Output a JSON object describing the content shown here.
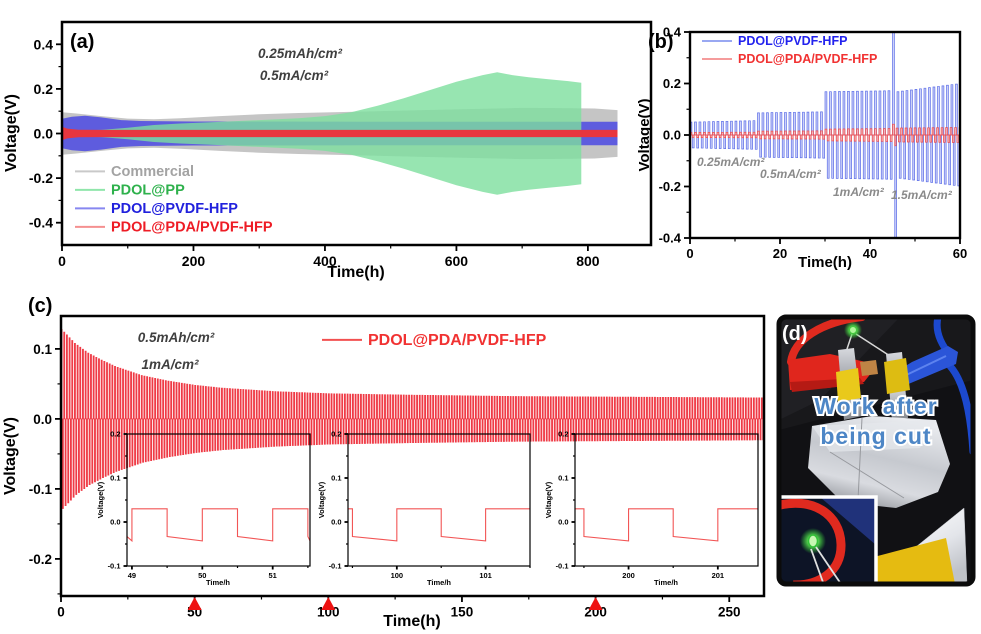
{
  "figure": {
    "type": "battery-cycling-scientific-figure",
    "background": "#ffffff",
    "panel_labels": [
      "(a)",
      "(b)",
      "(c)",
      "(d)"
    ]
  },
  "photo_panel": {
    "label": "(d)",
    "overlay_text": "Work after being cut",
    "overlay_lines": [
      "Work after",
      "being cut"
    ]
  },
  "colors": {
    "commercial_gray": "#c2c2c2",
    "pdol_pp_green": "#7ddf9e",
    "pdol_pvdf_blue": "#5552e0",
    "pdol_pda_red": "#e8363f",
    "annotation_dark": "#3f3f3f",
    "annotation_gray": "#8a8a8a",
    "marker_red": "#ee1111",
    "overlay_blue": "#4d86c6"
  },
  "chart_data": [
    {
      "id": "a",
      "type": "area",
      "panel_label": "(a)",
      "xlabel": "Time(h)",
      "ylabel": "Voltage(V)",
      "xlim": [
        0,
        896
      ],
      "ylim": [
        -0.5,
        0.5
      ],
      "xticks": {
        "values": [
          0,
          200,
          400,
          600,
          800
        ],
        "labels": [
          "0",
          "200",
          "400",
          "600",
          "800"
        ],
        "minor": [
          100,
          300,
          500,
          700
        ]
      },
      "yticks": {
        "values": [
          0.4,
          0.2,
          0,
          -0.2,
          -0.4
        ],
        "labels": [
          "0.4",
          "0.2",
          "0.0",
          "-0.2",
          "-0.4"
        ],
        "minor": [
          0.3,
          0.1,
          -0.1,
          -0.3
        ]
      },
      "annotations": [
        {
          "text": "0.25mAh/cm²"
        },
        {
          "text": "0.5mA/cm²"
        }
      ],
      "legend": [
        {
          "label": "Commercial",
          "text_color": "#a3a3a3",
          "line_color": "#c9c9c9"
        },
        {
          "label": "PDOL@PP",
          "text_color": "#2eb14c",
          "line_color": "#90e6ab"
        },
        {
          "label": "PDOL@PVDF-HFP",
          "text_color": "#2121dd",
          "line_color": "#8787f0"
        },
        {
          "label": "PDOL@PDA/PVDF-HFP",
          "text_color": "#ee1c25",
          "line_color": "#f59090"
        }
      ],
      "series": [
        {
          "name": "Commercial",
          "kind": "envelope",
          "color": "#c2c2c2",
          "opacity": 0.95,
          "points": [
            [
              0,
              0.095
            ],
            [
              20,
              0.09
            ],
            [
              60,
              0.078
            ],
            [
              100,
              0.067
            ],
            [
              140,
              0.064
            ],
            [
              180,
              0.068
            ],
            [
              240,
              0.078
            ],
            [
              300,
              0.086
            ],
            [
              360,
              0.092
            ],
            [
              420,
              0.096
            ],
            [
              480,
              0.1
            ],
            [
              540,
              0.104
            ],
            [
              600,
              0.108
            ],
            [
              660,
              0.112
            ],
            [
              700,
              0.115
            ],
            [
              760,
              0.114
            ],
            [
              810,
              0.112
            ],
            [
              845,
              0.105
            ]
          ]
        },
        {
          "name": "PDOL@PVDF-HFP",
          "kind": "envelope",
          "color": "#5552e0",
          "opacity": 0.92,
          "points": [
            [
              0,
              0.066
            ],
            [
              15,
              0.075
            ],
            [
              35,
              0.08
            ],
            [
              60,
              0.072
            ],
            [
              90,
              0.06
            ],
            [
              120,
              0.056
            ],
            [
              200,
              0.054
            ],
            [
              500,
              0.053
            ],
            [
              845,
              0.053
            ]
          ]
        },
        {
          "name": "PDOL@PP",
          "kind": "envelope",
          "color": "#7ddf9e",
          "opacity": 0.8,
          "points": [
            [
              0,
              0.012
            ],
            [
              60,
              0.016
            ],
            [
              100,
              0.026
            ],
            [
              140,
              0.038
            ],
            [
              180,
              0.045
            ],
            [
              240,
              0.052
            ],
            [
              300,
              0.06
            ],
            [
              360,
              0.068
            ],
            [
              400,
              0.078
            ],
            [
              440,
              0.095
            ],
            [
              480,
              0.124
            ],
            [
              520,
              0.158
            ],
            [
              560,
              0.195
            ],
            [
              600,
              0.232
            ],
            [
              640,
              0.262
            ],
            [
              662,
              0.275
            ],
            [
              685,
              0.262
            ],
            [
              710,
              0.252
            ],
            [
              740,
              0.243
            ],
            [
              770,
              0.235
            ],
            [
              790,
              0.228
            ]
          ]
        },
        {
          "name": "PDOL@PDA/PVDF-HFP",
          "kind": "envelope",
          "color": "#e8363f",
          "opacity": 1,
          "points": [
            [
              0,
              0.03
            ],
            [
              8,
              0.022
            ],
            [
              25,
              0.017
            ],
            [
              60,
              0.016
            ],
            [
              845,
              0.016
            ]
          ]
        }
      ]
    },
    {
      "id": "b",
      "type": "line",
      "panel_label": "(b)",
      "xlabel": "Time(h)",
      "ylabel": "Voltage(V)",
      "xlim": [
        0,
        60
      ],
      "ylim": [
        -0.4,
        0.4
      ],
      "xticks": {
        "values": [
          0,
          20,
          40,
          60
        ],
        "labels": [
          "0",
          "20",
          "40",
          "60"
        ],
        "minor": [
          10,
          30,
          50
        ]
      },
      "yticks": {
        "values": [
          0.4,
          0.2,
          0,
          -0.2,
          -0.4
        ],
        "labels": [
          "0.4",
          "0.2",
          "0.0",
          "-0.2",
          "-0.4"
        ],
        "minor": [
          0.3,
          0.1,
          -0.1,
          -0.3
        ]
      },
      "annotations": [
        {
          "text": "0.25mA/cm²"
        },
        {
          "text": "0.5mA/cm²"
        },
        {
          "text": "1mA/cm²"
        },
        {
          "text": "1.5mA/cm²"
        }
      ],
      "legend": [
        {
          "label": "PDOL@PVDF-HFP",
          "text_color": "#2222ee",
          "line_color": "#99a8f2"
        },
        {
          "label": "PDOL@PDA/PVDF-HFP",
          "text_color": "#f13232",
          "line_color": "#f59c9c"
        }
      ],
      "series": [
        {
          "name": "PDOL@PVDF-HFP",
          "kind": "pulsebars",
          "stroke": "#5e6fe8",
          "fill": "#b9c2f7",
          "fill_opacity": 0.75,
          "period": 1,
          "segments": [
            [
              0,
              15,
              0.05,
              0.056
            ],
            [
              15,
              30,
              0.086,
              0.09
            ],
            [
              30,
              45,
              0.168,
              0.172
            ],
            [
              45,
              46,
              0.42,
              0.42
            ],
            [
              46,
              60,
              0.168,
              0.2
            ]
          ]
        },
        {
          "name": "PDOL@PDA/PVDF-HFP",
          "kind": "pulsebars",
          "stroke": "#f04848",
          "fill": "#f8b0b0",
          "fill_opacity": 0.85,
          "period": 1,
          "segments": [
            [
              0,
              15,
              0.01,
              0.011
            ],
            [
              15,
              30,
              0.015,
              0.016
            ],
            [
              30,
              45,
              0.023,
              0.025
            ],
            [
              45,
              45.8,
              0.042,
              0.042
            ],
            [
              45.8,
              60,
              0.027,
              0.029
            ]
          ]
        }
      ]
    },
    {
      "id": "c",
      "type": "line",
      "panel_label": "(c)",
      "xlabel": "Time(h)",
      "ylabel": "Voltage(V)",
      "xlim": [
        0,
        263
      ],
      "ylim": [
        -0.253,
        0.147
      ],
      "xticks": {
        "values": [
          0,
          50,
          100,
          150,
          200,
          250
        ],
        "labels": [
          "0",
          "50",
          "100",
          "150",
          "200",
          "250"
        ],
        "minor": [
          25,
          75,
          125,
          175,
          225
        ]
      },
      "yticks": {
        "values": [
          0.1,
          0,
          -0.1,
          -0.2
        ],
        "labels": [
          "0.1",
          "0.0",
          "-0.1",
          "-0.2"
        ],
        "minor": [
          0.05,
          -0.05,
          -0.15,
          -0.25
        ]
      },
      "annotations": [
        {
          "text": "0.5mAh/cm²"
        },
        {
          "text": "1mA/cm²"
        }
      ],
      "legend": [
        {
          "label": "PDOL@PDA/PVDF-HFP",
          "text_color": "#f13232",
          "line_color": "#f25050"
        }
      ],
      "markers": {
        "shape": "triangle-up",
        "color": "#ee1111",
        "x": [
          50,
          100,
          200
        ]
      },
      "series": [
        {
          "name": "PDOL@PDA/PVDF-HFP",
          "kind": "pulsebars",
          "stroke": "#ef3b46",
          "fill": "#ef3b46",
          "fill_opacity": 1,
          "period": 1,
          "segments": [
            [
              0,
              2,
              0.128,
              0.12
            ],
            [
              2,
              5,
              0.12,
              0.108
            ],
            [
              5,
              10,
              0.108,
              0.094
            ],
            [
              10,
              15,
              0.094,
              0.084
            ],
            [
              15,
              20,
              0.084,
              0.075
            ],
            [
              20,
              30,
              0.075,
              0.062
            ],
            [
              30,
              40,
              0.062,
              0.054
            ],
            [
              40,
              50,
              0.054,
              0.048
            ],
            [
              50,
              60,
              0.048,
              0.044
            ],
            [
              60,
              80,
              0.044,
              0.039
            ],
            [
              80,
              100,
              0.039,
              0.036
            ],
            [
              100,
              130,
              0.036,
              0.034
            ],
            [
              130,
              170,
              0.034,
              0.032
            ],
            [
              170,
              263,
              0.032,
              0.03
            ]
          ]
        }
      ]
    },
    {
      "id": "c1",
      "type": "line",
      "parent": "c",
      "xlabel": "Time/h",
      "ylabel": "Voltage(V)",
      "xlim": [
        48.93,
        51.53
      ],
      "ylim": [
        -0.1,
        0.2
      ],
      "xticks": {
        "values": [
          49,
          50,
          51
        ],
        "labels": [
          "49",
          "50",
          "51"
        ],
        "minor": [
          49.5,
          50.5,
          51.5
        ]
      },
      "yticks": {
        "values": [
          0.2,
          0.1,
          0,
          -0.1
        ],
        "labels": [
          "0.2",
          "0.1",
          "0.0",
          "-0.1"
        ],
        "minor": [
          0.15,
          0.05,
          -0.05
        ]
      },
      "series": [
        {
          "kind": "squareline",
          "color": "#f25555",
          "high": 0.03,
          "low_start": -0.033,
          "low_end": -0.043
        }
      ]
    },
    {
      "id": "c2",
      "type": "line",
      "parent": "c",
      "xlabel": "Time/h",
      "ylabel": "Voltage(V)",
      "xlim": [
        99.45,
        101.5
      ],
      "ylim": [
        -0.1,
        0.2
      ],
      "xticks": {
        "values": [
          100,
          101
        ],
        "labels": [
          "100",
          "101"
        ],
        "minor": [
          99.5,
          100.5,
          101.5
        ]
      },
      "yticks": {
        "values": [
          0.2,
          0.1,
          0,
          -0.1
        ],
        "labels": [
          "0.2",
          "0.1",
          "0.0",
          "-0.1"
        ],
        "minor": [
          0.15,
          0.05,
          -0.05
        ]
      },
      "series": [
        {
          "kind": "squareline",
          "color": "#f25555",
          "high": 0.03,
          "low_start": -0.033,
          "low_end": -0.043
        }
      ]
    },
    {
      "id": "c3",
      "type": "line",
      "parent": "c",
      "xlabel": "Time/h",
      "ylabel": "Voltage(V)",
      "xlim": [
        199.4,
        201.45
      ],
      "ylim": [
        -0.1,
        0.2
      ],
      "xticks": {
        "values": [
          200,
          201
        ],
        "labels": [
          "200",
          "201"
        ],
        "minor": [
          199.5,
          200.5
        ]
      },
      "yticks": {
        "values": [
          0.2,
          0.1,
          0,
          -0.1
        ],
        "labels": [
          "0.2",
          "0.1",
          "0.0",
          "-0.1"
        ],
        "minor": [
          0.15,
          0.05,
          -0.05
        ]
      },
      "series": [
        {
          "kind": "squareline",
          "color": "#f25555",
          "high": 0.03,
          "low_start": -0.033,
          "low_end": -0.043
        }
      ]
    }
  ]
}
